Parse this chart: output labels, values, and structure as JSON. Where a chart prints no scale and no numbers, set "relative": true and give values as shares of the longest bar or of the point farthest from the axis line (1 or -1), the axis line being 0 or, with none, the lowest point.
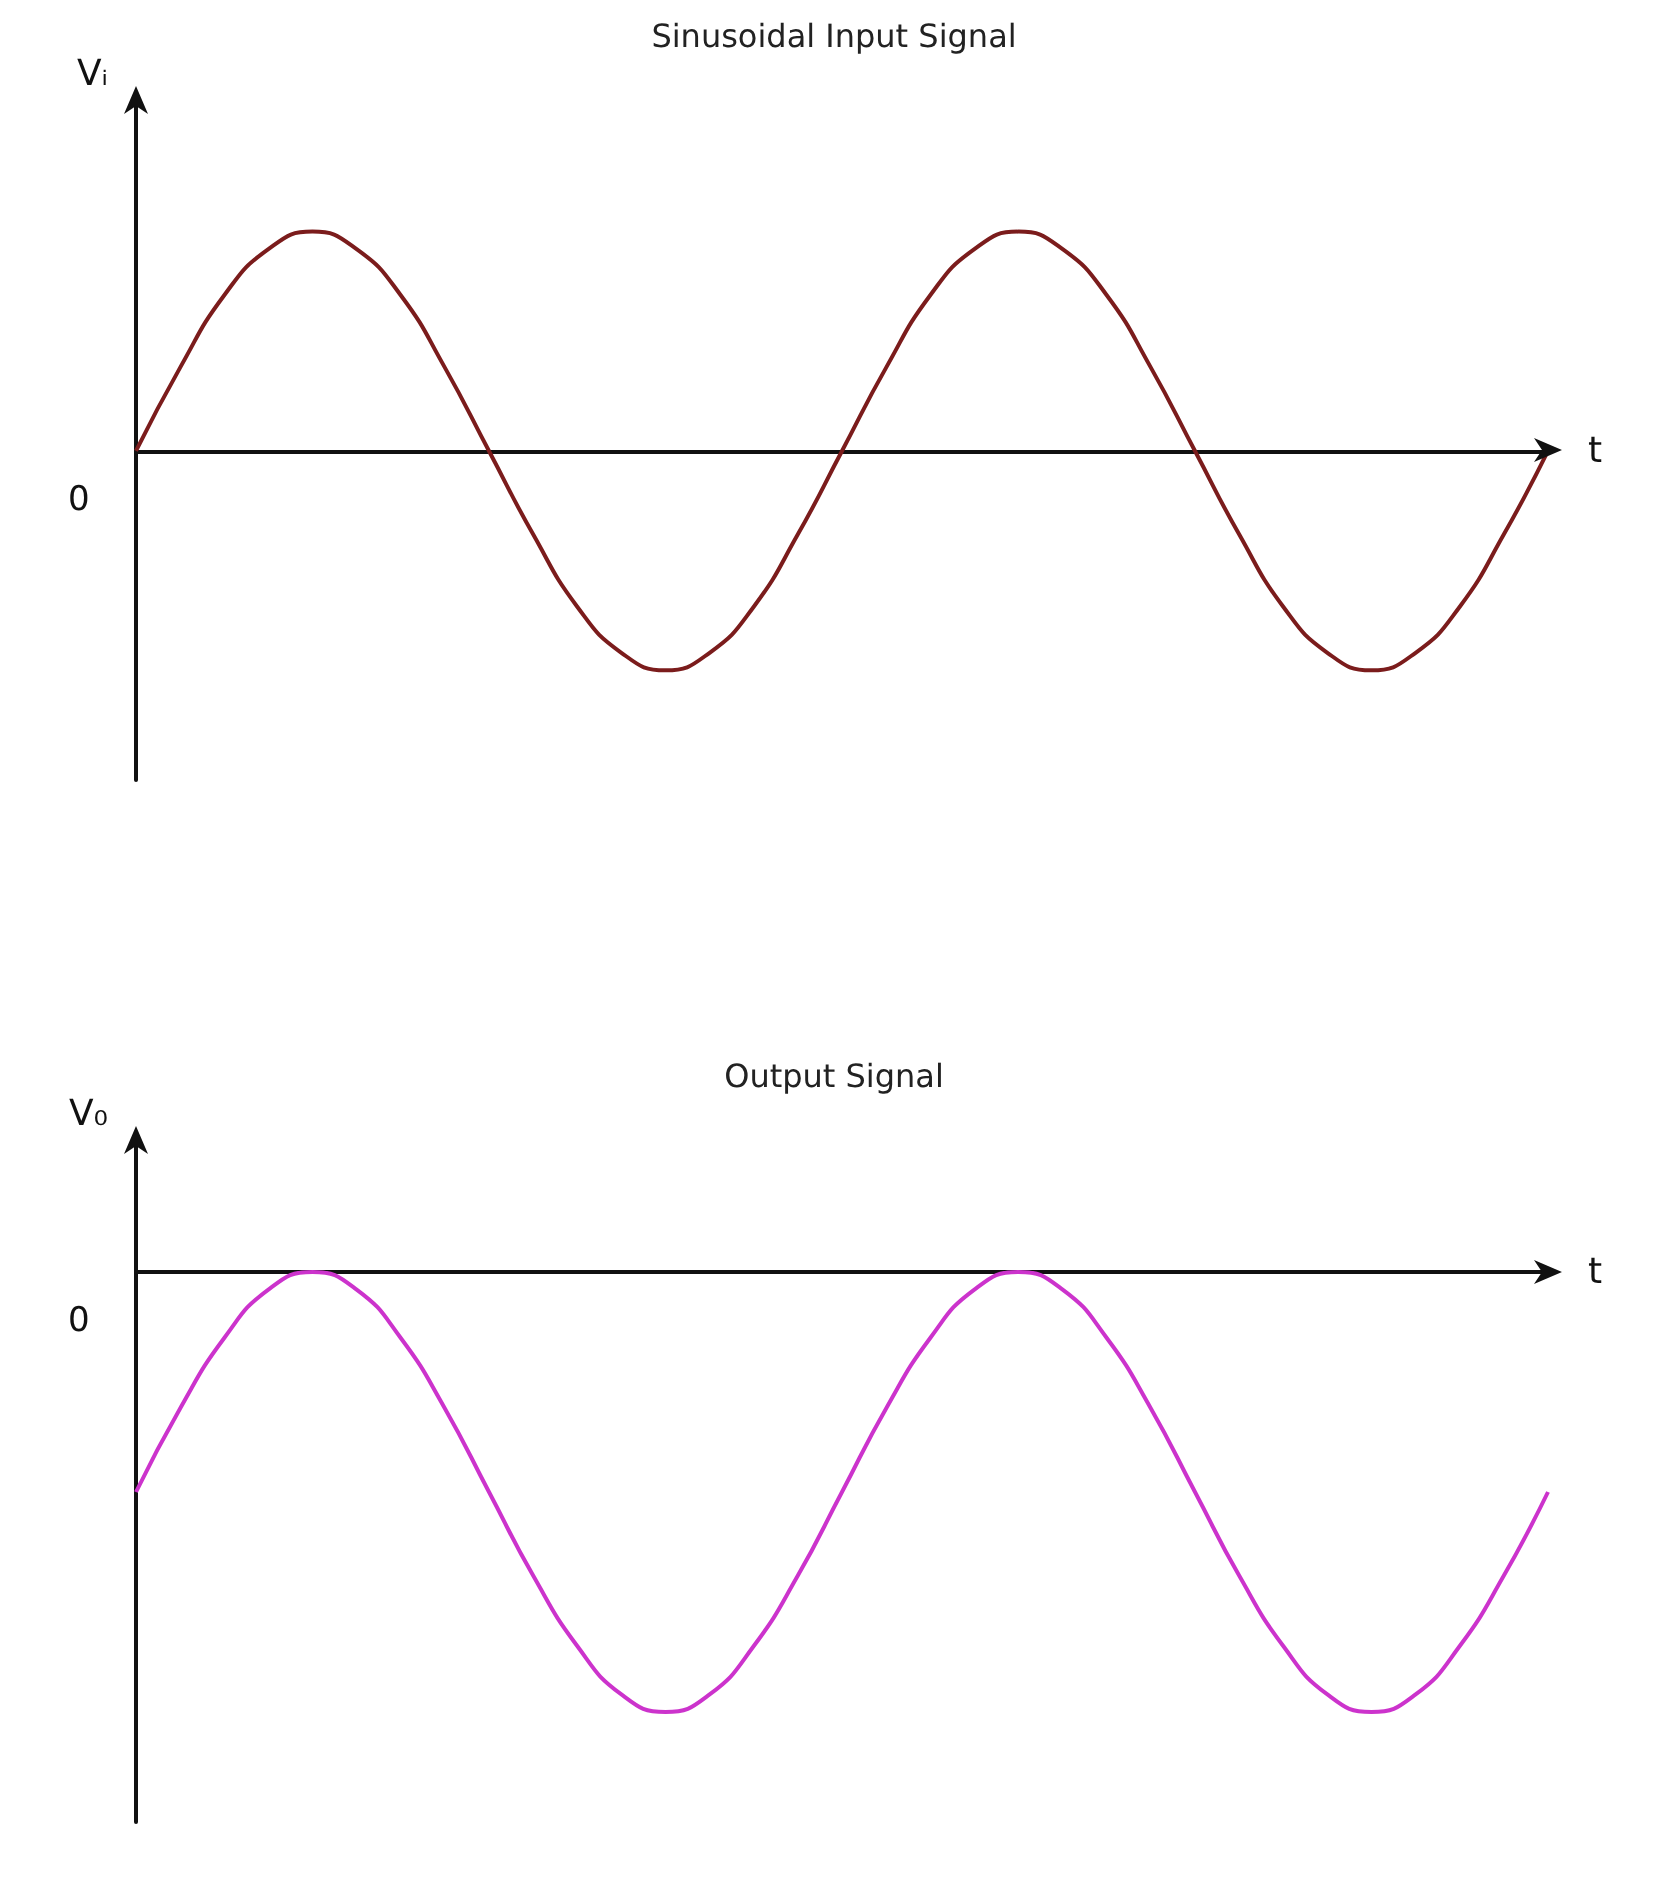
{
  "chart_data": [
    {
      "type": "line",
      "title": "Sinusoidal Input Signal",
      "xlabel": "t",
      "ylabel": "Vᵢ",
      "relative": true,
      "annotations": [
        "0"
      ],
      "categories": [
        null,
        null,
        null,
        null,
        null,
        null,
        null,
        null,
        null,
        null,
        null,
        null,
        null,
        null,
        null,
        null,
        null,
        null,
        null,
        null,
        null,
        null,
        null,
        null,
        null,
        null,
        null,
        null,
        null,
        null,
        null,
        null,
        null
      ],
      "series": [
        {
          "color": "#7b1c1c",
          "values": [
            0,
            0.38,
            0.71,
            0.92,
            1,
            0.92,
            0.71,
            0.38,
            0,
            -0.38,
            -0.71,
            -0.92,
            -1,
            -0.92,
            -0.71,
            -0.38,
            0,
            0.38,
            0.71,
            0.92,
            1,
            0.92,
            0.71,
            0.38,
            0,
            -0.38,
            -0.71,
            -0.92,
            -1,
            -0.92,
            -0.71,
            -0.38,
            0
          ]
        }
      ]
    },
    {
      "type": "line",
      "title": "Output Signal",
      "xlabel": "t",
      "ylabel": "V₀",
      "relative": true,
      "annotations": [
        "0"
      ],
      "categories": [
        null,
        null,
        null,
        null,
        null,
        null,
        null,
        null,
        null,
        null,
        null,
        null,
        null,
        null,
        null,
        null,
        null,
        null,
        null,
        null,
        null,
        null,
        null,
        null,
        null,
        null,
        null,
        null,
        null,
        null,
        null,
        null,
        null
      ],
      "series": [
        {
          "color": "#cc33cc",
          "values": [
            -0.5,
            -0.31,
            -0.15,
            -0.04,
            0,
            -0.04,
            -0.15,
            -0.31,
            -0.5,
            -0.69,
            -0.85,
            -0.96,
            -1,
            -0.96,
            -0.85,
            -0.69,
            -0.5,
            -0.31,
            -0.15,
            -0.04,
            0,
            -0.04,
            -0.15,
            -0.31,
            -0.5,
            -0.69,
            -0.85,
            -0.96,
            -1,
            -0.96,
            -0.85,
            -0.69,
            -0.5
          ]
        }
      ]
    }
  ]
}
